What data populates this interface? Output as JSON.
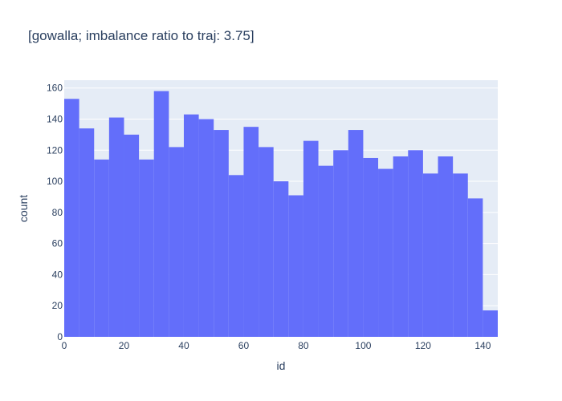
{
  "chart_data": {
    "type": "bar",
    "title": "[gowalla; imbalance ratio to traj: 3.75]",
    "xlabel": "id",
    "ylabel": "count",
    "bin_width": 5,
    "bin_starts": [
      0,
      5,
      10,
      15,
      20,
      25,
      30,
      35,
      40,
      45,
      50,
      55,
      60,
      65,
      70,
      75,
      80,
      85,
      90,
      95,
      100,
      105,
      110,
      115,
      120,
      125,
      130,
      135,
      140
    ],
    "values": [
      153,
      134,
      114,
      141,
      130,
      114,
      158,
      122,
      143,
      140,
      133,
      104,
      135,
      122,
      100,
      91,
      126,
      110,
      120,
      133,
      115,
      108,
      116,
      120,
      105,
      116,
      105,
      89,
      17
    ],
    "xlim": [
      0,
      145
    ],
    "ylim": [
      0,
      165
    ],
    "xticks": [
      0,
      20,
      40,
      60,
      80,
      100,
      120,
      140
    ],
    "yticks": [
      0,
      20,
      40,
      60,
      80,
      100,
      120,
      140,
      160
    ],
    "grid": true,
    "colors": {
      "bar": "#636efa",
      "plot_bg": "#e5ecf6",
      "grid": "#ffffff",
      "text": "#2a3f5f"
    }
  }
}
